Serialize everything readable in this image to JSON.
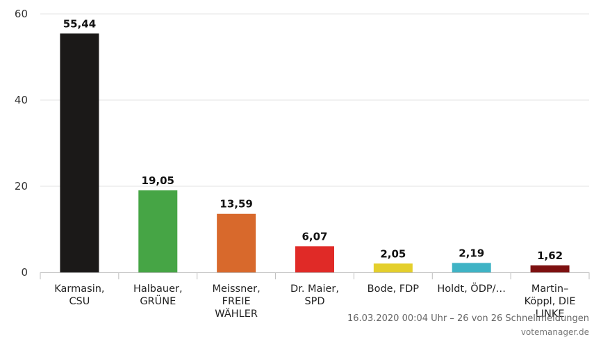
{
  "chart_data": {
    "type": "bar",
    "categories": [
      [
        "Karmasin,",
        "CSU"
      ],
      [
        "Halbauer,",
        "GRÜNE"
      ],
      [
        "Meissner,",
        "FREIE",
        "WÄHLER"
      ],
      [
        "Dr. Maier,",
        "SPD"
      ],
      [
        "Bode, FDP"
      ],
      [
        "Holdt, ÖDP/…"
      ],
      [
        "Martin–",
        "Köppl, DIE",
        "LINKE"
      ]
    ],
    "values": [
      55.44,
      19.05,
      13.59,
      6.07,
      2.05,
      2.19,
      1.62
    ],
    "value_labels": [
      "55,44",
      "19,05",
      "13,59",
      "6,07",
      "2,05",
      "2,19",
      "1,62"
    ],
    "colors": [
      "#1b1918",
      "#46a545",
      "#d8692c",
      "#e02a27",
      "#e4cf2c",
      "#3fb3c5",
      "#7d1010"
    ],
    "ylim": [
      0,
      60
    ],
    "yticks": [
      0,
      20,
      40,
      60
    ],
    "grid": true,
    "legend": "none"
  },
  "footer": {
    "timestamp": "16.03.2020 00:04 Uhr – 26 von 26 Schnellmeldungen",
    "source": "votemanager.de"
  }
}
